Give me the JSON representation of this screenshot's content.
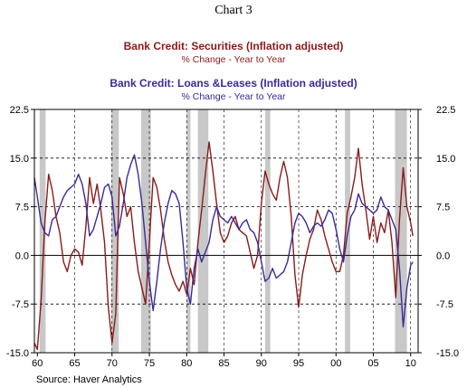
{
  "chart_data": {
    "type": "line",
    "title": "Chart 3",
    "source": "Source: Haver Analytics",
    "x_tick_labels": [
      "60",
      "65",
      "70",
      "75",
      "80",
      "85",
      "90",
      "95",
      "00",
      "05",
      "10"
    ],
    "x_range": [
      1959.6,
      2011.0
    ],
    "y_range": [
      -15.0,
      22.5
    ],
    "y_ticks_left": [
      "22.5",
      "15.0",
      "7.5",
      "0.0",
      "-7.5",
      "-15.0"
    ],
    "y_ticks_right": [
      "22.5",
      "15.0",
      "7.5",
      "0.0",
      "-7.5",
      "-15.0"
    ],
    "y_tick_values": [
      22.5,
      15.0,
      7.5,
      0.0,
      -7.5,
      -15.0
    ],
    "grid": "dashed-horizontal",
    "recessions": [
      [
        1960.3,
        1961.1
      ],
      [
        1969.9,
        1970.9
      ],
      [
        1973.9,
        1975.2
      ],
      [
        1980.0,
        1980.5
      ],
      [
        1981.5,
        1982.9
      ],
      [
        1990.5,
        1991.2
      ],
      [
        2001.2,
        2001.9
      ],
      [
        2007.9,
        2009.5
      ]
    ],
    "series": [
      {
        "name": "Bank Credit: Securities (Inflation adjusted)",
        "subtitle": "% Change - Year to Year",
        "color": "#8b1a1a",
        "x": [
          1959.6,
          1960.0,
          1960.5,
          1961.0,
          1961.5,
          1962.0,
          1962.5,
          1963.0,
          1963.5,
          1964.0,
          1964.5,
          1965.0,
          1965.5,
          1966.0,
          1966.5,
          1967.0,
          1967.5,
          1968.0,
          1968.5,
          1969.0,
          1969.5,
          1970.0,
          1970.5,
          1971.0,
          1971.5,
          1972.0,
          1972.5,
          1973.0,
          1973.5,
          1974.0,
          1974.5,
          1975.0,
          1975.5,
          1976.0,
          1976.5,
          1977.0,
          1977.5,
          1978.0,
          1978.5,
          1979.0,
          1979.5,
          1980.0,
          1980.5,
          1981.0,
          1981.5,
          1982.0,
          1982.5,
          1983.0,
          1983.5,
          1984.0,
          1984.5,
          1985.0,
          1985.5,
          1986.0,
          1986.5,
          1987.0,
          1987.5,
          1988.0,
          1988.5,
          1989.0,
          1989.5,
          1990.0,
          1990.5,
          1991.0,
          1991.5,
          1992.0,
          1992.5,
          1993.0,
          1993.5,
          1994.0,
          1994.5,
          1995.0,
          1995.5,
          1996.0,
          1996.5,
          1997.0,
          1997.5,
          1998.0,
          1998.5,
          1999.0,
          1999.5,
          2000.0,
          2000.5,
          2001.0,
          2001.5,
          2002.0,
          2002.5,
          2003.0,
          2003.5,
          2004.0,
          2004.5,
          2005.0,
          2005.5,
          2006.0,
          2006.5,
          2007.0,
          2007.5,
          2008.0,
          2008.5,
          2009.0,
          2009.5,
          2010.0,
          2010.3
        ],
        "values": [
          -13.5,
          -14.5,
          -7.0,
          5.0,
          12.5,
          10.0,
          6.0,
          3.5,
          -1.0,
          -2.5,
          0.0,
          1.0,
          0.5,
          -1.5,
          4.5,
          12.0,
          8.0,
          11.0,
          7.0,
          2.0,
          -8.0,
          -13.5,
          -9.0,
          12.0,
          9.5,
          6.0,
          7.5,
          2.0,
          -2.5,
          -5.0,
          -7.5,
          2.0,
          12.0,
          10.5,
          7.0,
          2.5,
          -1.0,
          -3.0,
          -4.5,
          -5.5,
          -4.0,
          -6.0,
          -2.0,
          -4.5,
          2.0,
          7.0,
          12.5,
          17.5,
          13.0,
          8.0,
          3.5,
          2.0,
          3.0,
          5.0,
          6.0,
          4.0,
          3.5,
          3.0,
          0.5,
          -2.0,
          0.0,
          8.0,
          13.0,
          11.0,
          9.5,
          8.5,
          12.0,
          14.5,
          12.0,
          6.0,
          -3.0,
          -8.0,
          -3.0,
          0.0,
          2.5,
          4.0,
          7.0,
          5.5,
          3.0,
          1.0,
          -1.0,
          -2.5,
          -2.5,
          0.0,
          6.5,
          9.0,
          12.0,
          16.5,
          11.0,
          7.0,
          2.5,
          6.0,
          2.0,
          5.0,
          3.5,
          7.0,
          2.0,
          -6.5,
          5.5,
          13.5,
          7.5,
          5.0,
          3.0
        ]
      },
      {
        "name": "Bank Credit: Loans &Leases (Inflation adjusted)",
        "subtitle": "% Change - Year to Year",
        "color": "#3a2a9a",
        "x": [
          1959.6,
          1960.0,
          1960.5,
          1961.0,
          1961.5,
          1962.0,
          1962.5,
          1963.0,
          1963.5,
          1964.0,
          1964.5,
          1965.0,
          1965.5,
          1966.0,
          1966.5,
          1967.0,
          1967.5,
          1968.0,
          1968.5,
          1969.0,
          1969.5,
          1970.0,
          1970.5,
          1971.0,
          1971.5,
          1972.0,
          1972.5,
          1973.0,
          1973.5,
          1974.0,
          1974.5,
          1975.0,
          1975.5,
          1976.0,
          1976.5,
          1977.0,
          1977.5,
          1978.0,
          1978.5,
          1979.0,
          1979.5,
          1980.0,
          1980.5,
          1981.0,
          1981.5,
          1982.0,
          1982.5,
          1983.0,
          1983.5,
          1984.0,
          1984.5,
          1985.0,
          1985.5,
          1986.0,
          1986.5,
          1987.0,
          1987.5,
          1988.0,
          1988.5,
          1989.0,
          1989.5,
          1990.0,
          1990.5,
          1991.0,
          1991.5,
          1992.0,
          1992.5,
          1993.0,
          1993.5,
          1994.0,
          1994.5,
          1995.0,
          1995.5,
          1996.0,
          1996.5,
          1997.0,
          1997.5,
          1998.0,
          1998.5,
          1999.0,
          1999.5,
          2000.0,
          2000.5,
          2001.0,
          2001.5,
          2002.0,
          2002.5,
          2003.0,
          2003.5,
          2004.0,
          2004.5,
          2005.0,
          2005.5,
          2006.0,
          2006.5,
          2007.0,
          2007.5,
          2008.0,
          2008.5,
          2009.0,
          2009.5,
          2010.0,
          2010.3
        ],
        "values": [
          12.0,
          9.0,
          5.0,
          3.5,
          3.0,
          5.5,
          6.0,
          7.5,
          9.0,
          10.0,
          10.5,
          11.0,
          12.5,
          11.0,
          8.0,
          3.0,
          4.0,
          6.0,
          8.0,
          10.5,
          11.0,
          9.0,
          3.0,
          4.5,
          8.0,
          12.0,
          14.0,
          15.5,
          12.5,
          8.0,
          2.0,
          -4.0,
          -8.5,
          -4.0,
          1.0,
          5.0,
          8.0,
          10.0,
          9.5,
          8.0,
          2.0,
          -5.0,
          -7.5,
          -2.0,
          1.0,
          -1.0,
          0.5,
          2.0,
          5.5,
          7.5,
          6.0,
          5.5,
          5.0,
          6.0,
          5.0,
          4.0,
          5.0,
          5.5,
          4.0,
          3.5,
          2.0,
          -1.0,
          -4.0,
          -3.5,
          -2.0,
          -3.5,
          -3.0,
          -2.5,
          -1.0,
          2.0,
          5.0,
          6.5,
          6.0,
          5.0,
          3.5,
          4.5,
          5.0,
          4.5,
          5.5,
          7.0,
          6.5,
          4.0,
          1.0,
          -1.0,
          3.0,
          6.0,
          7.0,
          9.5,
          8.0,
          7.5,
          7.0,
          6.5,
          7.0,
          9.0,
          7.5,
          7.0,
          5.5,
          4.0,
          -2.0,
          -11.0,
          -5.0,
          -1.5,
          -1.0
        ]
      }
    ]
  }
}
